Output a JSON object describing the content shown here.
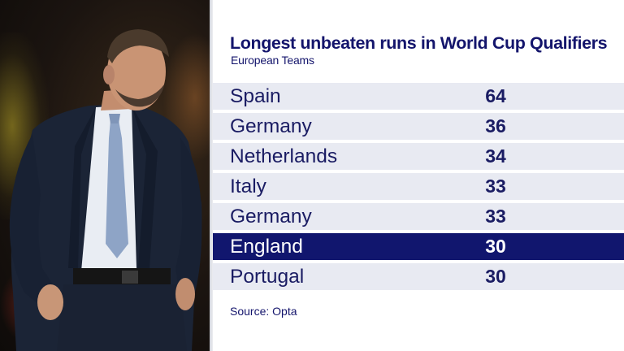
{
  "graphic": {
    "title": "Longest unbeaten runs in World Cup Qualifiers",
    "subtitle": "European Teams",
    "source": "Source: Opta",
    "highlight_color": "#11166e",
    "text_color": "#14156c",
    "row_color": "#e8eaf2"
  },
  "rows": [
    {
      "team": "Spain",
      "value": "64"
    },
    {
      "team": "Germany",
      "value": "36"
    },
    {
      "team": "Netherlands",
      "value": "34"
    },
    {
      "team": "Italy",
      "value": "33"
    },
    {
      "team": "Germany",
      "value": "33"
    },
    {
      "team": "England",
      "value": "30",
      "highlight": true
    },
    {
      "team": "Portugal",
      "value": "30"
    }
  ]
}
